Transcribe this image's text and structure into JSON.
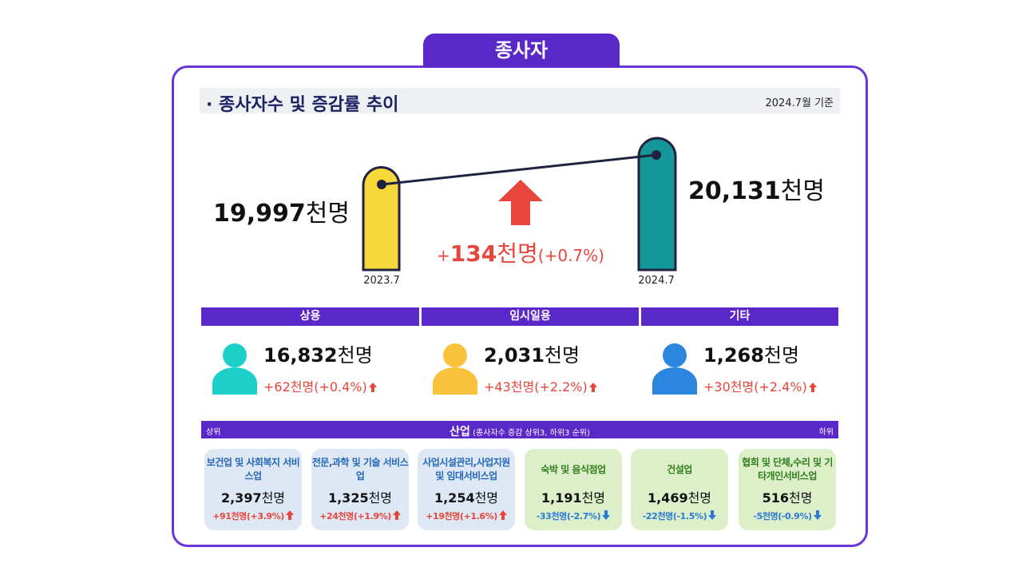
{
  "tab": "종사자",
  "header": {
    "bullet": "·",
    "title": "종사자수 및 증감률 추이",
    "basis": "2024.7월 기준"
  },
  "trend": {
    "points": [
      {
        "label": "2023.7",
        "value": "19,997",
        "unit": "천명"
      },
      {
        "label": "2024.7",
        "value": "20,131",
        "unit": "천명"
      }
    ],
    "change": {
      "sign": "+",
      "value": "134",
      "unit": "천명",
      "rate": "(+0.7%)"
    }
  },
  "status": [
    {
      "name": "상용",
      "value": "16,832",
      "unit": "천명",
      "change": "+62천명(+0.4%)"
    },
    {
      "name": "임시일용",
      "value": "2,031",
      "unit": "천명",
      "change": "+43천명(+2.2%)"
    },
    {
      "name": "기타",
      "value": "1,268",
      "unit": "천명",
      "change": "+30천명(+2.4%)"
    }
  ],
  "industry": {
    "top_label": "상위",
    "title": "산업",
    "note": "(종사자수 증감 상위3, 하위3 순위)",
    "bottom_label": "하위",
    "cards": [
      {
        "name": "보건업 및 사회복지 서비스업",
        "value": "2,397",
        "unit": "천명",
        "change": "+91천명(+3.9%)"
      },
      {
        "name": "전문,과학 및 기술 서비스업",
        "value": "1,325",
        "unit": "천명",
        "change": "+24천명(+1.9%)"
      },
      {
        "name": "사업시설관리,사업지원 및 임대서비스업",
        "value": "1,254",
        "unit": "천명",
        "change": "+19천명(+1.6%)"
      },
      {
        "name": "숙박 및 음식점업",
        "value": "1,191",
        "unit": "천명",
        "change": "-33천명(-2.7%)"
      },
      {
        "name": "건설업",
        "value": "1,469",
        "unit": "천명",
        "change": "-22천명(-1.5%)"
      },
      {
        "name": "협회 및 단체,수리 및 기타개인서비스업",
        "value": "516",
        "unit": "천명",
        "change": "-5천명(-0.9%)"
      }
    ]
  }
}
